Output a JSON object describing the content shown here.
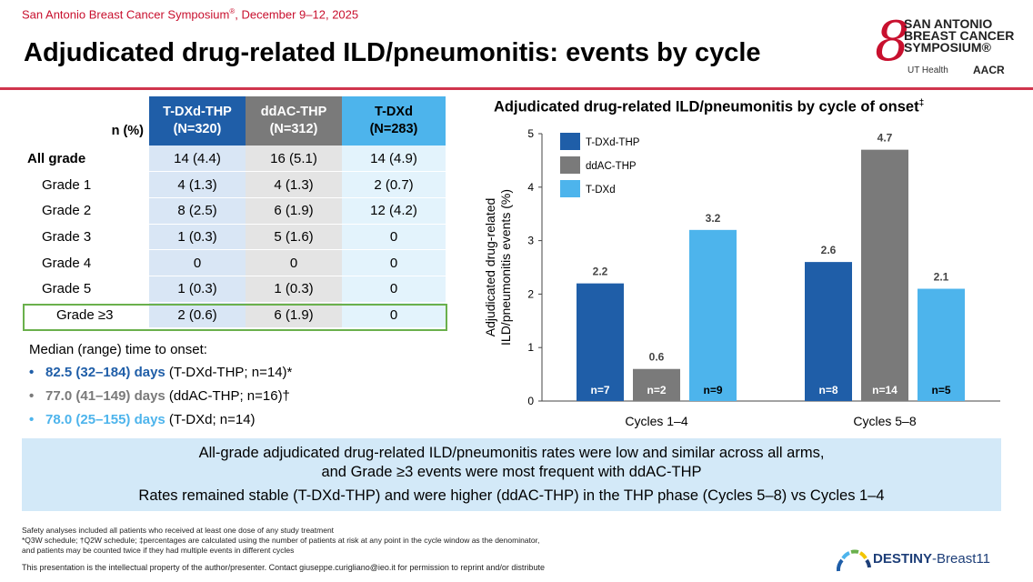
{
  "header": {
    "conference": "San Antonio Breast Cancer Symposium",
    "conference_reg": "®",
    "conference_dates": ", December 9–12, 2025",
    "title": "Adjudicated drug-related ILD/pneumonitis: events by cycle"
  },
  "logo": {
    "line1": "SAN ANTONIO",
    "line2": "BREAST CANCER",
    "line3": "SYMPOSIUM®",
    "ut": "UT Health",
    "aacr": "AACR"
  },
  "table": {
    "corner": "n (%)",
    "headers": [
      {
        "name": "T-DXd-THP",
        "n": "(N=320)"
      },
      {
        "name": "ddAC-THP",
        "n": "(N=312)"
      },
      {
        "name": "T-DXd",
        "n": "(N=283)"
      }
    ],
    "rows": [
      {
        "label": "All grade",
        "v": [
          "14  (4.4)",
          "16  (5.1)",
          "14  (4.9)"
        ]
      },
      {
        "label": "Grade 1",
        "v": [
          "4  (1.3)",
          "4  (1.3)",
          "2  (0.7)"
        ]
      },
      {
        "label": "Grade 2",
        "v": [
          "8  (2.5)",
          "6  (1.9)",
          "12  (4.2)"
        ]
      },
      {
        "label": "Grade 3",
        "v": [
          "1  (0.3)",
          "5  (1.6)",
          "0"
        ]
      },
      {
        "label": "Grade 4",
        "v": [
          "0",
          "0",
          "0"
        ]
      },
      {
        "label": "Grade 5",
        "v": [
          "1  (0.3)",
          "1  (0.3)",
          "0"
        ]
      },
      {
        "label": "Grade ≥3",
        "v": [
          "2  (0.6)",
          "6  (1.9)",
          "0"
        ]
      }
    ]
  },
  "median": {
    "heading": "Median (range) time to onset:",
    "items": [
      {
        "bold": "82.5 (32–184) days",
        "rest": " (T-DXd-THP; n=14)*"
      },
      {
        "bold": "77.0 (41–149) days",
        "rest": " (ddAC-THP; n=16)†"
      },
      {
        "bold": "78.0 (25–155) days",
        "rest": " (T-DXd; n=14)"
      }
    ]
  },
  "chart_title": "Adjudicated drug-related ILD/pneumonitis by cycle of onset",
  "chart_title_mark": "‡",
  "chart_data": {
    "type": "bar",
    "categories": [
      "Cycles 1–4",
      "Cycles 5–8"
    ],
    "ylabel_line1": "Adjudicated drug-related",
    "ylabel_line2": "ILD/pneumonitis events (%)",
    "ylim": [
      0,
      5
    ],
    "yticks": [
      "0",
      "1",
      "2",
      "3",
      "4",
      "5"
    ],
    "legend_position": "top-left",
    "series": [
      {
        "name": "T-DXd-THP",
        "color": "#1f5ea8",
        "values": [
          2.2,
          2.6
        ],
        "labels": [
          "2.2",
          "2.6"
        ],
        "n": [
          "n=7",
          "n=8"
        ]
      },
      {
        "name": "ddAC-THP",
        "color": "#7a7a7a",
        "values": [
          0.6,
          4.7
        ],
        "labels": [
          "0.6",
          "4.7"
        ],
        "n": [
          "n=2",
          "n=14"
        ]
      },
      {
        "name": "T-DXd",
        "color": "#4db4ec",
        "values": [
          3.2,
          2.1
        ],
        "labels": [
          "3.2",
          "2.1"
        ],
        "n": [
          "n=9",
          "n=5"
        ]
      }
    ]
  },
  "summary": {
    "line1": "All-grade adjudicated drug-related ILD/pneumonitis rates were low and similar across all arms,",
    "line2": "and Grade ≥3 events were most frequent with ddAC-THP",
    "line3": "Rates remained stable (T-DXd-THP) and were higher (ddAC-THP) in the THP phase (Cycles 5–8) vs Cycles 1–4"
  },
  "footnotes": {
    "f1": "Safety analyses included all patients who received at least one dose of any study treatment",
    "f2": "*Q3W schedule; †Q2W schedule; ‡percentages are calculated using the number of patients at risk at any point in the cycle window as the denominator,",
    "f3": "and patients may be counted twice if they had multiple events in different cycles",
    "f4": "This presentation is the intellectual property of the author/presenter. Contact giuseppe.curigliano@ieo.it for permission to reprint and/or distribute"
  },
  "destiny": {
    "bold": "DESTINY",
    "rest": "-Breast11"
  }
}
